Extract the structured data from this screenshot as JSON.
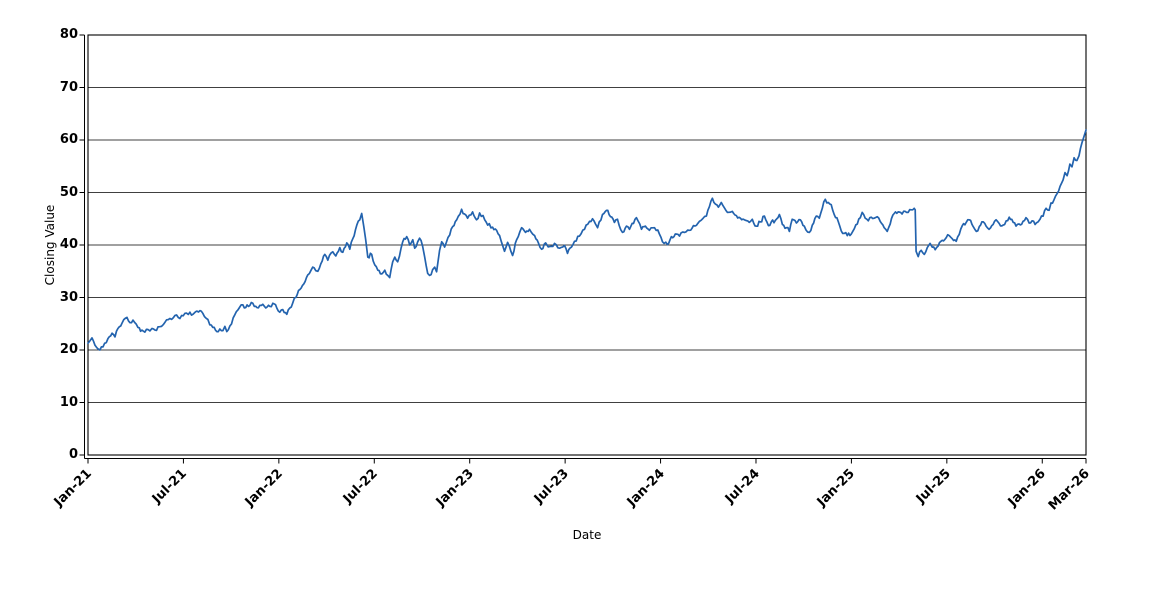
{
  "chart_data": {
    "type": "line",
    "title": "",
    "xlabel": "Date",
    "ylabel": "Closing Value",
    "x_unit": "months since Jan-2021",
    "xlim": [
      0,
      62.75
    ],
    "ylim": [
      0,
      80
    ],
    "grid": "horizontal-solid",
    "legend": "none",
    "y_ticks": [
      0,
      10,
      20,
      30,
      40,
      50,
      60,
      70,
      80
    ],
    "x_ticks": [
      {
        "m": 0,
        "label": "Jan-21"
      },
      {
        "m": 6,
        "label": "Jul-21"
      },
      {
        "m": 12,
        "label": "Jan-22"
      },
      {
        "m": 18,
        "label": "Jul-22"
      },
      {
        "m": 24,
        "label": "Jan-23"
      },
      {
        "m": 30,
        "label": "Jul-23"
      },
      {
        "m": 36,
        "label": "Jan-24"
      },
      {
        "m": 42,
        "label": "Jul-24"
      },
      {
        "m": 48,
        "label": "Jan-25"
      },
      {
        "m": 54,
        "label": "Jul-25"
      },
      {
        "m": 60,
        "label": "Jan-26"
      },
      {
        "m": 62.75,
        "label": "Mar-26"
      }
    ],
    "series": [
      {
        "name": "Closing Value",
        "color": "#2363ae",
        "points": [
          [
            0,
            21.3
          ],
          [
            0.13,
            21.8
          ],
          [
            0.25,
            22.3
          ],
          [
            0.44,
            20.9
          ],
          [
            0.63,
            20.2
          ],
          [
            0.75,
            20.0
          ],
          [
            0.94,
            20.6
          ],
          [
            1.26,
            22.2
          ],
          [
            1.51,
            23.2
          ],
          [
            1.7,
            22.5
          ],
          [
            1.88,
            24.1
          ],
          [
            2.14,
            25.1
          ],
          [
            2.45,
            26.2
          ],
          [
            2.64,
            25.2
          ],
          [
            2.83,
            25.7
          ],
          [
            3.14,
            24.3
          ],
          [
            3.39,
            23.8
          ],
          [
            3.58,
            23.4
          ],
          [
            3.77,
            23.9
          ],
          [
            4.02,
            24.1
          ],
          [
            4.21,
            23.8
          ],
          [
            4.4,
            24.4
          ],
          [
            4.84,
            25.3
          ],
          [
            5.15,
            26.0
          ],
          [
            5.47,
            26.6
          ],
          [
            5.78,
            26.0
          ],
          [
            6.09,
            27.0
          ],
          [
            6.41,
            27.2
          ],
          [
            6.6,
            26.8
          ],
          [
            6.85,
            27.4
          ],
          [
            7.04,
            27.5
          ],
          [
            7.22,
            27.0
          ],
          [
            7.54,
            25.8
          ],
          [
            7.66,
            24.8
          ],
          [
            7.85,
            24.3
          ],
          [
            8.1,
            23.5
          ],
          [
            8.29,
            24.0
          ],
          [
            8.48,
            23.7
          ],
          [
            8.61,
            24.5
          ],
          [
            8.73,
            23.5
          ],
          [
            8.92,
            24.6
          ],
          [
            9.23,
            26.7
          ],
          [
            9.42,
            27.6
          ],
          [
            9.74,
            28.6
          ],
          [
            9.92,
            28.1
          ],
          [
            10.18,
            28.5
          ],
          [
            10.36,
            28.9
          ],
          [
            10.55,
            28.3
          ],
          [
            10.8,
            28.5
          ],
          [
            10.99,
            28.7
          ],
          [
            11.18,
            28.0
          ],
          [
            11.43,
            28.3
          ],
          [
            11.62,
            28.9
          ],
          [
            11.87,
            28.0
          ],
          [
            12.06,
            27.2
          ],
          [
            12.25,
            27.7
          ],
          [
            12.5,
            26.8
          ],
          [
            12.69,
            28.0
          ],
          [
            12.88,
            29.0
          ],
          [
            13.07,
            30.0
          ],
          [
            13.32,
            31.5
          ],
          [
            13.57,
            32.6
          ],
          [
            13.82,
            34.3
          ],
          [
            14.01,
            35.1
          ],
          [
            14.13,
            35.8
          ],
          [
            14.32,
            35.1
          ],
          [
            14.45,
            35.0
          ],
          [
            14.64,
            36.4
          ],
          [
            14.89,
            38.2
          ],
          [
            15.08,
            37.1
          ],
          [
            15.39,
            38.7
          ],
          [
            15.58,
            37.9
          ],
          [
            15.83,
            39.5
          ],
          [
            16.02,
            38.6
          ],
          [
            16.27,
            40.4
          ],
          [
            16.46,
            39.2
          ],
          [
            16.65,
            41.2
          ],
          [
            16.9,
            43.8
          ],
          [
            17.09,
            44.8
          ],
          [
            17.21,
            46.0
          ],
          [
            17.34,
            43.5
          ],
          [
            17.46,
            41.0
          ],
          [
            17.59,
            37.7
          ],
          [
            17.84,
            38.2
          ],
          [
            18.03,
            36.2
          ],
          [
            18.22,
            35.2
          ],
          [
            18.47,
            34.5
          ],
          [
            18.66,
            35.2
          ],
          [
            18.85,
            34.2
          ],
          [
            18.97,
            33.8
          ],
          [
            19.16,
            36.8
          ],
          [
            19.29,
            37.7
          ],
          [
            19.47,
            36.8
          ],
          [
            19.79,
            40.6
          ],
          [
            20.04,
            41.6
          ],
          [
            20.23,
            40.0
          ],
          [
            20.42,
            41.0
          ],
          [
            20.54,
            39.4
          ],
          [
            20.73,
            40.6
          ],
          [
            20.85,
            41.3
          ],
          [
            21.04,
            39.8
          ],
          [
            21.17,
            37.7
          ],
          [
            21.36,
            34.6
          ],
          [
            21.48,
            34.2
          ],
          [
            21.67,
            35.3
          ],
          [
            21.8,
            35.8
          ],
          [
            21.92,
            34.9
          ],
          [
            22.11,
            39.0
          ],
          [
            22.24,
            40.6
          ],
          [
            22.42,
            39.6
          ],
          [
            22.74,
            41.9
          ],
          [
            22.93,
            43.5
          ],
          [
            23.18,
            44.8
          ],
          [
            23.49,
            46.8
          ],
          [
            23.68,
            45.9
          ],
          [
            23.87,
            45.1
          ],
          [
            24.18,
            46.3
          ],
          [
            24.43,
            44.8
          ],
          [
            24.62,
            46.1
          ],
          [
            24.94,
            44.8
          ],
          [
            25.13,
            43.8
          ],
          [
            25.44,
            43.4
          ],
          [
            25.69,
            42.8
          ],
          [
            25.88,
            41.8
          ],
          [
            26.19,
            38.8
          ],
          [
            26.38,
            40.5
          ],
          [
            26.7,
            38.0
          ],
          [
            26.95,
            41.0
          ],
          [
            27.26,
            43.3
          ],
          [
            27.51,
            42.4
          ],
          [
            27.76,
            43.0
          ],
          [
            28.08,
            41.8
          ],
          [
            28.33,
            40.3
          ],
          [
            28.52,
            39.2
          ],
          [
            28.77,
            40.4
          ],
          [
            29.02,
            39.7
          ],
          [
            29.33,
            40.3
          ],
          [
            29.65,
            39.4
          ],
          [
            29.96,
            39.9
          ],
          [
            30.15,
            38.4
          ],
          [
            30.4,
            39.6
          ],
          [
            30.59,
            40.7
          ],
          [
            30.9,
            41.7
          ],
          [
            31.22,
            43.0
          ],
          [
            31.53,
            44.5
          ],
          [
            31.72,
            45.0
          ],
          [
            31.91,
            44.0
          ],
          [
            32.04,
            43.3
          ],
          [
            32.35,
            45.8
          ],
          [
            32.6,
            46.6
          ],
          [
            32.85,
            45.4
          ],
          [
            33.1,
            44.3
          ],
          [
            33.29,
            44.9
          ],
          [
            33.61,
            42.4
          ],
          [
            33.86,
            43.6
          ],
          [
            34.05,
            43.0
          ],
          [
            34.3,
            44.1
          ],
          [
            34.48,
            45.2
          ],
          [
            34.8,
            43.0
          ],
          [
            35.05,
            43.6
          ],
          [
            35.3,
            42.8
          ],
          [
            35.62,
            43.3
          ],
          [
            35.93,
            42.1
          ],
          [
            36.12,
            40.6
          ],
          [
            36.43,
            40.1
          ],
          [
            36.68,
            41.6
          ],
          [
            36.93,
            42.1
          ],
          [
            37.19,
            41.7
          ],
          [
            37.5,
            42.4
          ],
          [
            37.81,
            42.8
          ],
          [
            38.07,
            43.7
          ],
          [
            38.44,
            44.5
          ],
          [
            38.88,
            45.5
          ],
          [
            39.07,
            47.3
          ],
          [
            39.26,
            48.9
          ],
          [
            39.45,
            47.8
          ],
          [
            39.64,
            47.2
          ],
          [
            39.82,
            48.1
          ],
          [
            40.01,
            47.1
          ],
          [
            40.2,
            46.2
          ],
          [
            40.51,
            46.4
          ],
          [
            40.77,
            45.6
          ],
          [
            41.02,
            45.1
          ],
          [
            41.27,
            44.8
          ],
          [
            41.58,
            44.3
          ],
          [
            41.77,
            44.9
          ],
          [
            42.02,
            43.6
          ],
          [
            42.27,
            44.4
          ],
          [
            42.53,
            45.5
          ],
          [
            42.78,
            43.7
          ],
          [
            42.96,
            44.4
          ],
          [
            43.22,
            44.7
          ],
          [
            43.47,
            45.8
          ],
          [
            43.66,
            43.9
          ],
          [
            43.91,
            43.3
          ],
          [
            44.1,
            42.6
          ],
          [
            44.28,
            44.9
          ],
          [
            44.54,
            44.2
          ],
          [
            44.79,
            44.8
          ],
          [
            45.04,
            43.6
          ],
          [
            45.35,
            42.4
          ],
          [
            45.54,
            43.8
          ],
          [
            45.79,
            45.5
          ],
          [
            45.98,
            45.1
          ],
          [
            46.17,
            47.0
          ],
          [
            46.36,
            48.7
          ],
          [
            46.55,
            48.1
          ],
          [
            46.73,
            47.7
          ],
          [
            46.92,
            45.8
          ],
          [
            47.17,
            44.5
          ],
          [
            47.36,
            42.7
          ],
          [
            47.55,
            42.2
          ],
          [
            47.74,
            41.8
          ],
          [
            47.99,
            42.1
          ],
          [
            48.18,
            43.1
          ],
          [
            48.37,
            44.0
          ],
          [
            48.56,
            45.2
          ],
          [
            48.68,
            46.2
          ],
          [
            48.87,
            45.1
          ],
          [
            49.06,
            44.6
          ],
          [
            49.25,
            45.3
          ],
          [
            49.43,
            45.1
          ],
          [
            49.62,
            45.4
          ],
          [
            49.81,
            44.5
          ],
          [
            50.06,
            43.3
          ],
          [
            50.25,
            42.6
          ],
          [
            50.44,
            44.0
          ],
          [
            50.69,
            46.0
          ],
          [
            50.94,
            46.3
          ],
          [
            51.19,
            45.9
          ],
          [
            51.38,
            46.4
          ],
          [
            51.57,
            46.2
          ],
          [
            51.76,
            46.7
          ],
          [
            51.95,
            47.0
          ],
          [
            52.01,
            46.7
          ],
          [
            52.07,
            38.8
          ],
          [
            52.2,
            37.8
          ],
          [
            52.39,
            39.0
          ],
          [
            52.58,
            38.2
          ],
          [
            52.77,
            39.5
          ],
          [
            52.95,
            40.3
          ],
          [
            53.08,
            39.6
          ],
          [
            53.27,
            39.1
          ],
          [
            53.45,
            39.8
          ],
          [
            53.71,
            40.9
          ],
          [
            53.96,
            41.4
          ],
          [
            54.15,
            41.8
          ],
          [
            54.34,
            41.2
          ],
          [
            54.59,
            40.7
          ],
          [
            54.78,
            42.0
          ],
          [
            54.97,
            43.7
          ],
          [
            55.22,
            44.3
          ],
          [
            55.41,
            44.8
          ],
          [
            55.66,
            43.5
          ],
          [
            55.85,
            42.6
          ],
          [
            56.04,
            43.5
          ],
          [
            56.29,
            44.4
          ],
          [
            56.47,
            43.6
          ],
          [
            56.66,
            43.0
          ],
          [
            56.91,
            43.9
          ],
          [
            57.1,
            44.8
          ],
          [
            57.29,
            44.1
          ],
          [
            57.54,
            43.8
          ],
          [
            57.73,
            44.6
          ],
          [
            57.92,
            45.3
          ],
          [
            58.17,
            44.3
          ],
          [
            58.35,
            43.6
          ],
          [
            58.54,
            44.0
          ],
          [
            58.79,
            44.5
          ],
          [
            58.98,
            45.2
          ],
          [
            59.17,
            44.2
          ],
          [
            59.36,
            44.6
          ],
          [
            59.55,
            43.9
          ],
          [
            59.74,
            44.4
          ],
          [
            59.86,
            44.9
          ],
          [
            60.05,
            45.5
          ],
          [
            60.24,
            47.0
          ],
          [
            60.43,
            46.6
          ],
          [
            60.55,
            48.0
          ],
          [
            60.74,
            48.6
          ],
          [
            60.93,
            49.8
          ],
          [
            61.12,
            51.2
          ],
          [
            61.31,
            52.4
          ],
          [
            61.43,
            53.8
          ],
          [
            61.56,
            53.2
          ],
          [
            61.74,
            55.4
          ],
          [
            61.87,
            54.9
          ],
          [
            62.0,
            56.6
          ],
          [
            62.18,
            56.1
          ],
          [
            62.31,
            57.0
          ],
          [
            62.5,
            59.5
          ],
          [
            62.62,
            60.6
          ],
          [
            62.75,
            61.9
          ]
        ]
      }
    ]
  },
  "style": {
    "line_color": "#2363ae",
    "grid_color": "#000000",
    "axis_color": "#000000",
    "text_color": "#000000",
    "background": "#ffffff"
  }
}
